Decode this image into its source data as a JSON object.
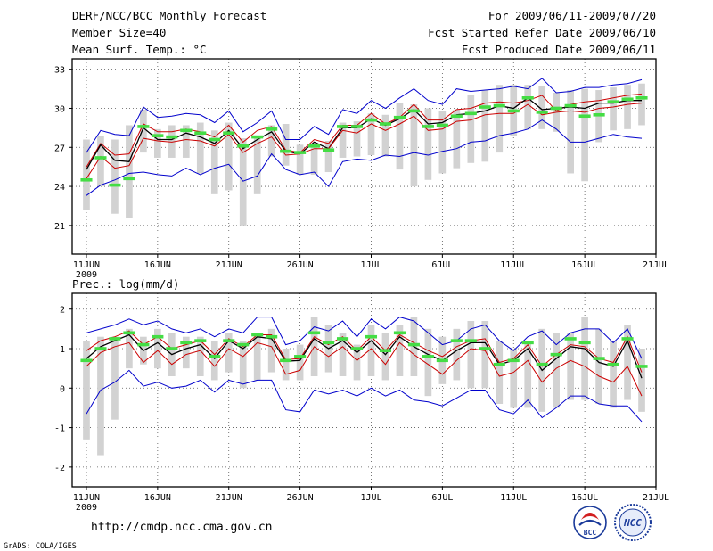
{
  "header": {
    "title": "DERF/NCC/BCC Monthly Forecast",
    "member_size": "Member Size=40",
    "variable": "Mean Surf. Temp.: °C",
    "period": "For 2009/06/11-2009/07/20",
    "fcst_started": "Fcst Started Refer Date 2009/06/10",
    "fcst_produced": "Fcst Produced Date 2009/06/11"
  },
  "footer": {
    "url": "http://cmdp.ncc.cma.gov.cn",
    "grads": "GrADS: COLA/IGES",
    "logo_bcc": "BCC",
    "logo_ncc": "NCC"
  },
  "colors": {
    "bar": "#d2d2d2",
    "observed": "#44dd44",
    "ensemble_mean": "#000000",
    "spread_inner": "#cc0000",
    "spread_outer": "#0000cc"
  },
  "chart_data": [
    {
      "type": "line",
      "title": "Mean Surf. Temp.: °C",
      "x_ticks": [
        "11JUN",
        "16JUN",
        "21JUN",
        "26JUN",
        "1JUL",
        "6JUL",
        "11JUL",
        "16JUL",
        "21JUL"
      ],
      "x_tick_days": [
        0,
        5,
        10,
        15,
        20,
        25,
        30,
        35,
        40
      ],
      "x_sublabel": "2009",
      "xlim": [
        -1,
        40
      ],
      "ylim": [
        18.8,
        33.8
      ],
      "y_ticks": [
        21,
        24,
        27,
        30,
        33
      ],
      "grid": true,
      "ensemble_range": {
        "low": [
          22.2,
          24.0,
          21.9,
          21.6,
          26.6,
          26.2,
          26.2,
          26.2,
          25.0,
          23.4,
          23.7,
          21.0,
          23.4,
          26.3,
          25.6,
          24.9,
          24.9,
          25.1,
          26.2,
          26.3,
          26.4,
          26.3,
          25.3,
          24.0,
          24.5,
          25.0,
          25.4,
          25.8,
          25.9,
          26.6,
          27.9,
          28.4,
          28.4,
          28.2,
          25.0,
          24.4,
          27.4,
          28.3,
          28.4,
          28.7
        ],
        "high": [
          27.6,
          27.9,
          27.6,
          28.7,
          29.9,
          28.4,
          28.7,
          28.7,
          28.9,
          28.3,
          28.9,
          27.7,
          27.9,
          28.7,
          28.8,
          27.2,
          27.0,
          27.5,
          28.9,
          29.0,
          29.6,
          29.5,
          30.4,
          30.3,
          30.0,
          29.8,
          29.9,
          31.0,
          31.4,
          31.8,
          31.8,
          31.8,
          31.7,
          31.2,
          31.4,
          31.5,
          31.4,
          31.6,
          31.8,
          31.9
        ]
      },
      "series": [
        {
          "name": "ensemble_max",
          "color": "blue",
          "values": [
            26.6,
            28.3,
            28.0,
            27.9,
            30.1,
            29.3,
            29.4,
            29.6,
            29.5,
            28.9,
            29.8,
            28.2,
            28.9,
            29.8,
            27.6,
            27.6,
            28.6,
            28.0,
            29.9,
            29.6,
            30.6,
            30.0,
            30.8,
            31.5,
            30.6,
            30.3,
            31.5,
            31.3,
            31.4,
            31.5,
            31.7,
            31.5,
            32.3,
            31.2,
            31.3,
            31.6,
            31.6,
            31.8,
            31.9,
            32.2
          ]
        },
        {
          "name": "upper_spread",
          "color": "red",
          "values": [
            25.5,
            27.3,
            26.4,
            26.5,
            28.8,
            28.2,
            28.2,
            28.4,
            28.2,
            27.8,
            28.7,
            27.4,
            28.3,
            28.6,
            26.8,
            26.6,
            27.6,
            27.3,
            28.7,
            28.7,
            29.6,
            28.8,
            29.3,
            30.3,
            29.1,
            29.1,
            29.9,
            30.0,
            30.4,
            30.5,
            30.4,
            30.6,
            31.0,
            29.8,
            30.3,
            30.5,
            30.6,
            30.8,
            31.0,
            31.1
          ]
        },
        {
          "name": "ensemble_mean",
          "color": "black",
          "values": [
            25.3,
            27.2,
            26.0,
            25.9,
            28.5,
            27.6,
            27.6,
            28.1,
            27.8,
            27.3,
            28.3,
            26.9,
            27.6,
            28.2,
            26.7,
            26.5,
            27.4,
            26.9,
            28.5,
            28.5,
            29.2,
            28.7,
            29.2,
            29.9,
            28.8,
            28.9,
            29.5,
            29.6,
            29.8,
            30.2,
            30.0,
            30.8,
            29.9,
            30.0,
            30.1,
            30.0,
            30.4,
            30.4,
            30.6,
            30.6
          ]
        },
        {
          "name": "lower_spread",
          "color": "red",
          "values": [
            24.6,
            26.3,
            25.4,
            25.6,
            27.7,
            27.5,
            27.4,
            27.6,
            27.5,
            27.1,
            28.0,
            26.6,
            27.3,
            27.8,
            26.4,
            26.5,
            26.9,
            26.9,
            28.3,
            28.1,
            28.8,
            28.3,
            28.8,
            29.4,
            28.3,
            28.4,
            29.0,
            29.1,
            29.5,
            29.6,
            29.6,
            30.3,
            29.5,
            29.7,
            29.8,
            29.7,
            30.0,
            30.1,
            30.3,
            30.4
          ]
        },
        {
          "name": "ensemble_min",
          "color": "blue",
          "values": [
            23.3,
            24.1,
            24.5,
            25.0,
            25.1,
            24.9,
            24.8,
            25.4,
            24.9,
            25.4,
            25.7,
            24.4,
            24.8,
            26.5,
            25.3,
            24.9,
            25.1,
            24.0,
            25.9,
            26.1,
            26.0,
            26.4,
            26.3,
            26.6,
            26.4,
            26.7,
            26.9,
            27.4,
            27.5,
            27.9,
            28.1,
            28.4,
            29.1,
            28.4,
            27.4,
            27.4,
            27.7,
            28.0,
            27.8,
            27.7
          ]
        }
      ],
      "observed": [
        24.5,
        26.2,
        24.1,
        24.6,
        28.6,
        27.9,
        27.8,
        28.3,
        28.1,
        27.6,
        28.1,
        27.1,
        27.8,
        28.4,
        26.7,
        26.6,
        27.1,
        26.8,
        28.6,
        28.6,
        29.1,
        28.8,
        29.3,
        29.8,
        28.6,
        28.7,
        29.4,
        29.6,
        30.1,
        30.2,
        29.8,
        30.8,
        29.7,
        30.0,
        30.2,
        29.4,
        29.5,
        30.5,
        30.7,
        30.8
      ]
    },
    {
      "type": "line",
      "title": "Prec.: log(mm/d)",
      "x_ticks": [
        "11JUN",
        "16JUN",
        "21JUN",
        "26JUN",
        "1JUL",
        "6JUL",
        "11JUL",
        "16JUL",
        "21JUL"
      ],
      "x_tick_days": [
        0,
        5,
        10,
        15,
        20,
        25,
        30,
        35,
        40
      ],
      "x_sublabel": "2009",
      "xlim": [
        -1,
        40
      ],
      "ylim": [
        -2.5,
        2.4
      ],
      "y_ticks": [
        -2,
        -1,
        0,
        1,
        2
      ],
      "grid": true,
      "ensemble_range": {
        "low": [
          -1.3,
          -1.7,
          -0.8,
          0.5,
          0.6,
          0.5,
          0.3,
          0.5,
          0.3,
          0.2,
          0.4,
          0.0,
          0.2,
          0.4,
          0.2,
          0.2,
          0.3,
          0.4,
          0.3,
          0.2,
          0.3,
          0.2,
          0.3,
          0.3,
          -0.2,
          0.1,
          0.2,
          0.0,
          0.0,
          -0.4,
          -0.5,
          -0.5,
          -0.6,
          -0.5,
          -0.3,
          -0.3,
          -0.4,
          -0.5,
          -0.3,
          -0.6
        ],
        "high": [
          1.2,
          1.3,
          1.3,
          1.5,
          1.3,
          1.5,
          1.4,
          1.3,
          1.3,
          1.2,
          1.4,
          1.2,
          1.4,
          1.5,
          1.0,
          1.1,
          1.8,
          1.6,
          1.4,
          1.1,
          1.6,
          1.4,
          1.6,
          1.8,
          1.5,
          1.3,
          1.5,
          1.7,
          1.7,
          1.2,
          1.0,
          1.2,
          1.5,
          1.4,
          1.4,
          1.8,
          1.5,
          1.2,
          1.6,
          1.0
        ]
      },
      "series": [
        {
          "name": "ensemble_max",
          "color": "blue",
          "values": [
            1.4,
            1.5,
            1.6,
            1.75,
            1.6,
            1.7,
            1.5,
            1.4,
            1.5,
            1.3,
            1.5,
            1.4,
            1.8,
            1.8,
            1.1,
            1.2,
            1.55,
            1.45,
            1.7,
            1.3,
            1.75,
            1.5,
            1.8,
            1.7,
            1.4,
            1.1,
            1.2,
            1.5,
            1.6,
            1.2,
            0.95,
            1.3,
            1.45,
            1.1,
            1.4,
            1.5,
            1.5,
            1.15,
            1.5,
            0.75
          ]
        },
        {
          "name": "upper_spread",
          "color": "red",
          "values": [
            0.95,
            1.2,
            1.3,
            1.45,
            1.1,
            1.3,
            1.0,
            1.1,
            1.2,
            0.85,
            1.25,
            1.05,
            1.35,
            1.35,
            0.72,
            0.75,
            1.3,
            1.1,
            1.3,
            0.95,
            1.3,
            0.95,
            1.35,
            1.15,
            0.95,
            0.8,
            1.05,
            1.2,
            1.25,
            0.65,
            0.75,
            1.1,
            0.55,
            0.85,
            1.1,
            1.05,
            0.75,
            0.65,
            1.3,
            0.4
          ]
        },
        {
          "name": "ensemble_mean",
          "color": "black",
          "values": [
            0.75,
            1.05,
            1.2,
            1.35,
            0.95,
            1.15,
            0.85,
            1.0,
            1.1,
            0.75,
            1.2,
            1.0,
            1.3,
            1.25,
            0.68,
            0.7,
            1.25,
            1.0,
            1.2,
            0.9,
            1.2,
            0.85,
            1.3,
            1.05,
            0.85,
            0.7,
            0.95,
            1.15,
            1.15,
            0.6,
            0.7,
            1.0,
            0.45,
            0.75,
            1.05,
            1.0,
            0.65,
            0.55,
            1.2,
            0.25
          ]
        },
        {
          "name": "lower_spread",
          "color": "red",
          "values": [
            0.55,
            0.9,
            1.05,
            1.15,
            0.65,
            0.95,
            0.6,
            0.85,
            0.95,
            0.55,
            1.0,
            0.8,
            1.15,
            1.05,
            0.35,
            0.45,
            1.05,
            0.8,
            1.05,
            0.7,
            1.0,
            0.6,
            1.15,
            0.85,
            0.6,
            0.35,
            0.7,
            1.0,
            0.95,
            0.3,
            0.4,
            0.7,
            0.15,
            0.5,
            0.7,
            0.55,
            0.3,
            0.15,
            0.55,
            -0.2
          ]
        },
        {
          "name": "ensemble_min",
          "color": "blue",
          "values": [
            -0.65,
            -0.05,
            0.15,
            0.45,
            0.05,
            0.15,
            0.0,
            0.05,
            0.2,
            -0.1,
            0.2,
            0.1,
            0.2,
            0.2,
            -0.55,
            -0.6,
            -0.05,
            -0.15,
            -0.05,
            -0.2,
            0.0,
            -0.2,
            -0.05,
            -0.3,
            -0.35,
            -0.45,
            -0.25,
            -0.05,
            -0.05,
            -0.55,
            -0.65,
            -0.3,
            -0.75,
            -0.5,
            -0.2,
            -0.2,
            -0.4,
            -0.45,
            -0.45,
            -0.85
          ]
        }
      ],
      "observed": [
        0.7,
        1.0,
        1.25,
        1.4,
        1.1,
        1.3,
        1.0,
        1.15,
        1.2,
        0.8,
        1.2,
        1.1,
        1.35,
        1.3,
        0.7,
        0.8,
        1.4,
        1.15,
        1.25,
        1.0,
        1.3,
        0.95,
        1.4,
        1.1,
        0.8,
        0.7,
        1.2,
        1.2,
        1.0,
        0.6,
        0.7,
        1.15,
        0.6,
        0.85,
        1.25,
        1.15,
        0.75,
        0.6,
        1.25,
        0.55
      ]
    }
  ]
}
